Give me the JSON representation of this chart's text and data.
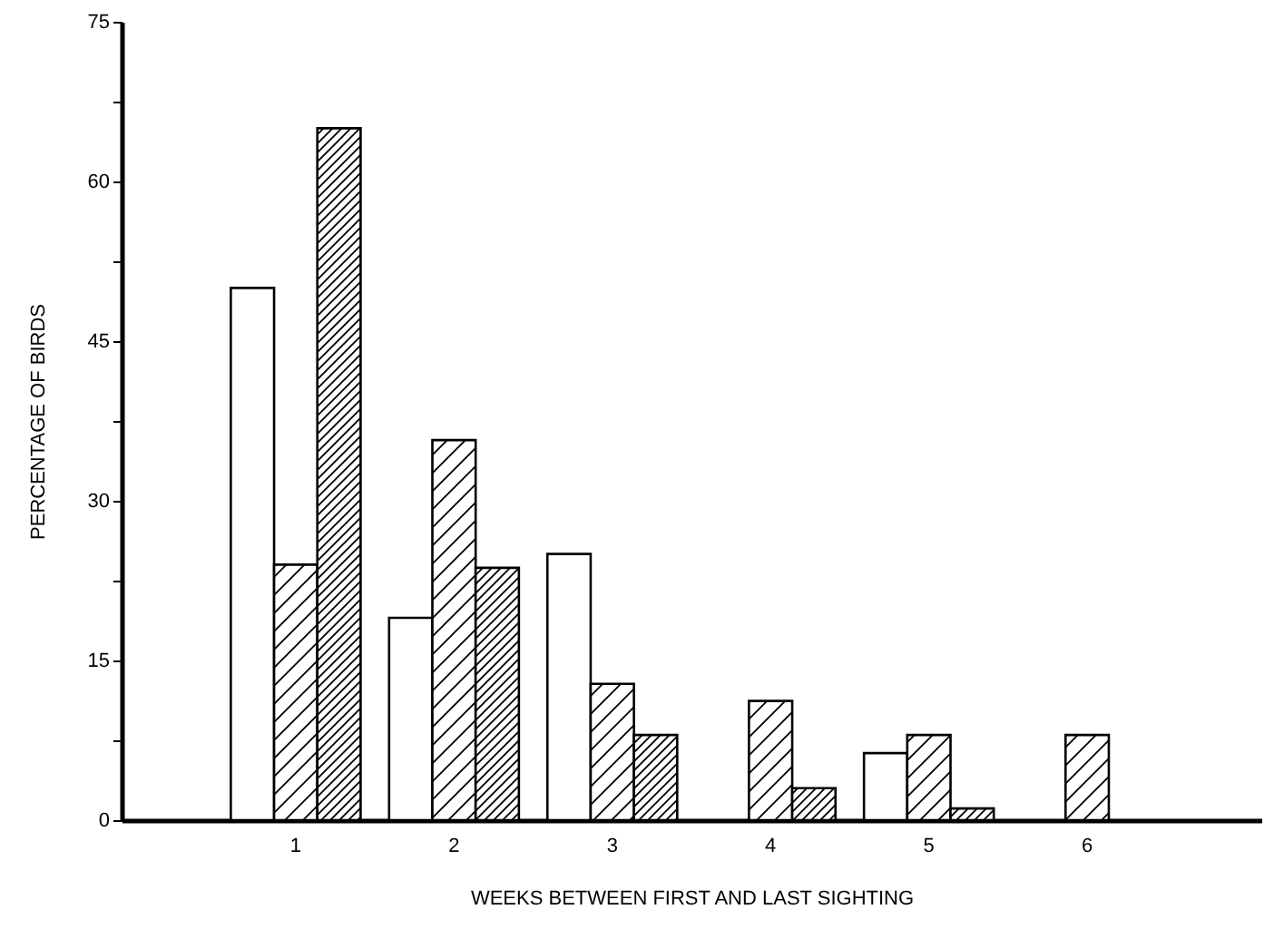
{
  "chart_data": {
    "type": "bar",
    "xlabel": "WEEKS BETWEEN FIRST AND LAST SIGHTING",
    "ylabel": "PERCENTAGE OF BIRDS",
    "categories": [
      "1",
      "2",
      "3",
      "4",
      "5",
      "6"
    ],
    "series": [
      {
        "color": "#ffffff",
        "values": [
          50,
          19,
          25,
          null,
          6.3,
          null
        ]
      },
      {
        "color": "#000000",
        "values": [
          24,
          35.7,
          12.8,
          11.2,
          8,
          8
        ]
      },
      {
        "color": "#000000",
        "values": [
          65,
          23.7,
          8,
          3,
          1.1,
          null
        ]
      }
    ],
    "ylim": [
      0,
      75
    ],
    "yticks": [
      0,
      {
        "value": 7.5,
        "label": null
      },
      15,
      {
        "value": 22.5,
        "label": null
      },
      30,
      {
        "value": 37.5,
        "label": null
      },
      45,
      {
        "value": 52.5,
        "label": null
      },
      60,
      {
        "value": 67.5,
        "label": null
      },
      75
    ],
    "grid": false
  }
}
